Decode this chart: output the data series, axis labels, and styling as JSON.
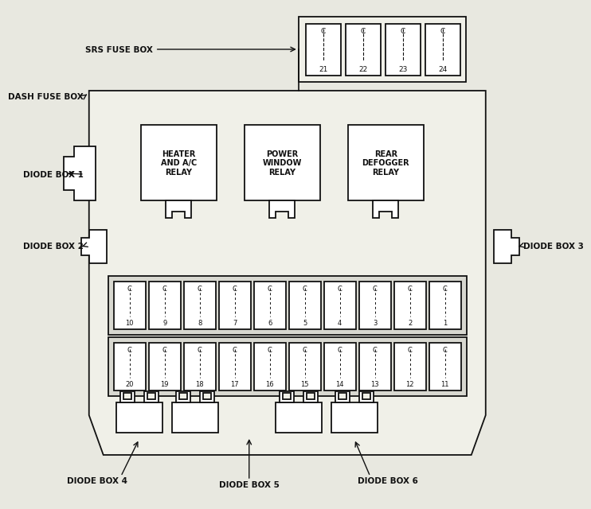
{
  "bg_color": "#e8e8e0",
  "line_color": "#111111",
  "fill_color": "#ffffff",
  "box_fill": "#f0f0e8",
  "srs_nums": [
    "21",
    "22",
    "23",
    "24"
  ],
  "relay_labels": [
    "HEATER\nAND A/C\nRELAY",
    "POWER\nWINDOW\nRELAY",
    "REAR\nDEFOGGER\nRELAY"
  ],
  "fuse_row1": [
    "10",
    "9",
    "8",
    "7",
    "6",
    "5",
    "4",
    "3",
    "2",
    "1"
  ],
  "fuse_row2": [
    "20",
    "19",
    "18",
    "17",
    "16",
    "15",
    "14",
    "13",
    "12",
    "11"
  ],
  "label_srs": "SRS FUSE BOX",
  "label_dash": "DASH FUSE BOX",
  "label_diode1": "DIODE BOX 1",
  "label_diode2": "DIODE BOX 2",
  "label_diode3": "DIODE BOX 3",
  "label_diode4": "DIODE BOX 4",
  "label_diode5": "DIODE BOX 5",
  "label_diode6": "DIODE BOX 6"
}
